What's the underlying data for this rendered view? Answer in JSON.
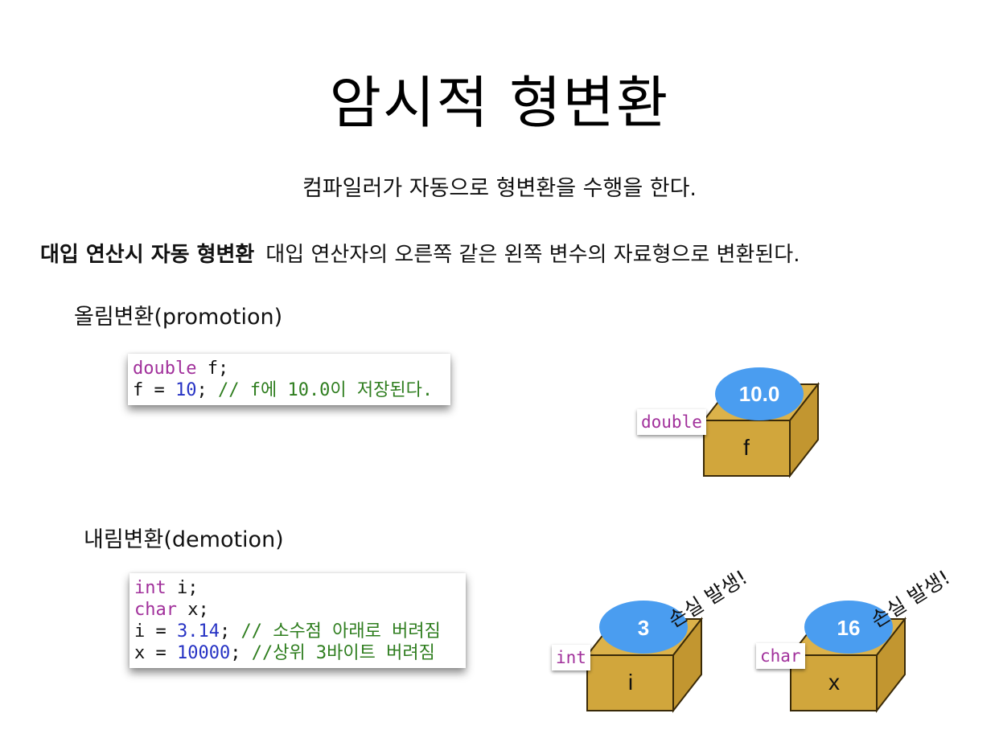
{
  "title": "암시적 형변환",
  "subtitle": "컴파일러가 자동으로 형변환을 수행을 한다.",
  "rule": {
    "bold": "대입 연산시 자동 형변환",
    "text": "대입 연산자의 오른쪽 같은 왼쪽 변수의 자료형으로 변환된다."
  },
  "promotion": {
    "heading": "올림변환(promotion)",
    "code": {
      "line1_kw": "double",
      "line1_rest": " f;",
      "line2_a": "f = ",
      "line2_num": "10",
      "line2_b": "; ",
      "line2_cmt": "// f에 10.0이 저장된다."
    },
    "box": {
      "type": "double",
      "value": "10.0",
      "var": "f"
    }
  },
  "demotion": {
    "heading": "내림변환(demotion)",
    "code": {
      "line1_kw": "int",
      "line1_rest": " i;",
      "line2_kw": "char",
      "line2_rest": " x;",
      "line3_a": "i = ",
      "line3_num": "3.14",
      "line3_b": "; ",
      "line3_cmt": "// 소수점 아래로 버려짐",
      "line4_a": "x = ",
      "line4_num": "10000",
      "line4_b": "; ",
      "line4_cmt": "//상위 3바이트 버려짐"
    },
    "box_int": {
      "type": "int",
      "value": "3",
      "var": "i",
      "loss": "손실 발생!"
    },
    "box_char": {
      "type": "char",
      "value": "16",
      "var": "x",
      "loss": "손실 발생!"
    }
  },
  "colors": {
    "box_front": "#d1a63c",
    "box_side": "#c29630",
    "box_top": "#dcb24a",
    "bubble": "#4a9df0",
    "keyword": "#a1309b",
    "number": "#2632c4",
    "comment": "#2e7d1e"
  }
}
